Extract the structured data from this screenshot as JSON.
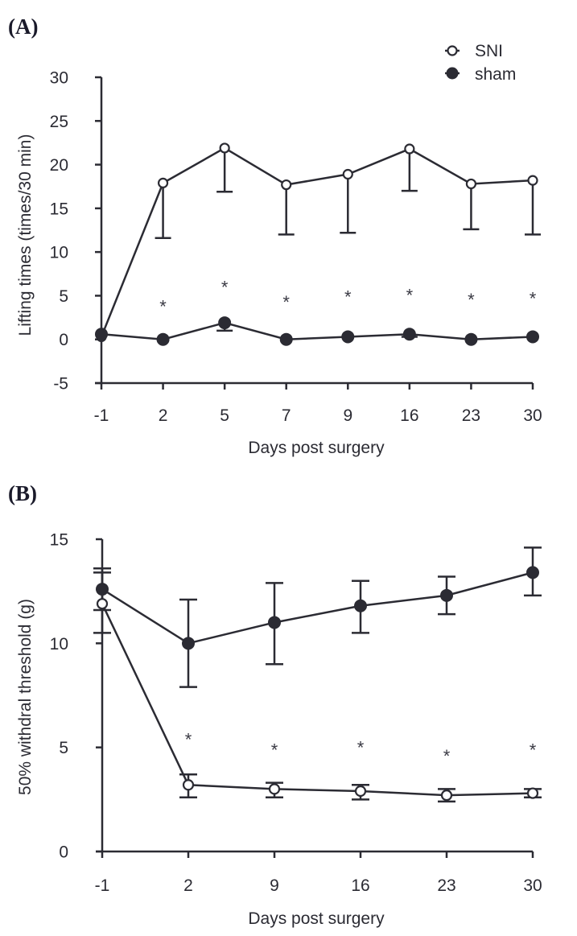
{
  "chart_data": [
    {
      "type": "line",
      "panel_label": "(A)",
      "title": "",
      "xlabel": "Days post surgery",
      "ylabel": "Lifting times (times/30 min)",
      "categories": [
        "-1",
        "2",
        "5",
        "7",
        "9",
        "16",
        "23",
        "30"
      ],
      "yticks": [
        "30",
        "25",
        "20",
        "15",
        "10",
        "5",
        "0",
        "-5"
      ],
      "ylim": [
        -5,
        30
      ],
      "grid": false,
      "legend": "top-right",
      "series": [
        {
          "name": "SNI",
          "marker": "open-circle",
          "values": [
            0.3,
            17.9,
            21.9,
            17.7,
            18.9,
            21.8,
            17.8,
            18.2
          ],
          "error_low": [
            0.3,
            11.6,
            16.9,
            12.0,
            12.2,
            17.0,
            12.6,
            12.0
          ],
          "error_high": [
            null,
            null,
            null,
            null,
            null,
            null,
            null,
            null
          ]
        },
        {
          "name": "sham",
          "marker": "filled-circle",
          "values": [
            0.6,
            0.0,
            1.9,
            0.0,
            0.3,
            0.6,
            0.0,
            0.3
          ],
          "error_low": [
            null,
            null,
            1.0,
            null,
            null,
            0.3,
            null,
            null
          ],
          "error_high": [
            null,
            null,
            null,
            null,
            null,
            null,
            null,
            null
          ]
        }
      ],
      "annotations": [
        {
          "x": "2",
          "y": 3.8,
          "text": "*"
        },
        {
          "x": "5",
          "y": 6.0,
          "text": "*"
        },
        {
          "x": "7",
          "y": 4.3,
          "text": "*"
        },
        {
          "x": "9",
          "y": 4.9,
          "text": "*"
        },
        {
          "x": "16",
          "y": 5.1,
          "text": "*"
        },
        {
          "x": "23",
          "y": 4.6,
          "text": "*"
        },
        {
          "x": "30",
          "y": 4.7,
          "text": "*"
        }
      ]
    },
    {
      "type": "line",
      "panel_label": "(B)",
      "title": "",
      "xlabel": "Days post surgery",
      "ylabel": "50% withdral threshold (g)",
      "categories": [
        "-1",
        "2",
        "9",
        "16",
        "23",
        "30"
      ],
      "yticks": [
        "15",
        "10",
        "5",
        "0"
      ],
      "ylim": [
        0,
        15
      ],
      "grid": false,
      "legend": "none",
      "series": [
        {
          "name": "sham",
          "marker": "filled-circle",
          "values": [
            12.6,
            10.0,
            11.0,
            11.8,
            12.3,
            13.4
          ],
          "error_low": [
            11.6,
            7.9,
            9.0,
            10.5,
            11.4,
            12.3
          ],
          "error_high": [
            13.6,
            12.1,
            12.9,
            13.0,
            13.2,
            14.6
          ]
        },
        {
          "name": "SNI",
          "marker": "open-circle",
          "values": [
            11.9,
            3.2,
            3.0,
            2.9,
            2.7,
            2.8
          ],
          "error_low": [
            10.5,
            2.6,
            2.6,
            2.5,
            2.4,
            2.6
          ],
          "error_high": [
            13.4,
            3.7,
            3.3,
            3.2,
            3.0,
            3.0
          ]
        }
      ],
      "annotations": [
        {
          "x": "2",
          "y": 5.4,
          "text": "*"
        },
        {
          "x": "9",
          "y": 4.9,
          "text": "*"
        },
        {
          "x": "16",
          "y": 5.0,
          "text": "*"
        },
        {
          "x": "23",
          "y": 4.6,
          "text": "*"
        },
        {
          "x": "30",
          "y": 4.9,
          "text": "*"
        }
      ]
    }
  ]
}
